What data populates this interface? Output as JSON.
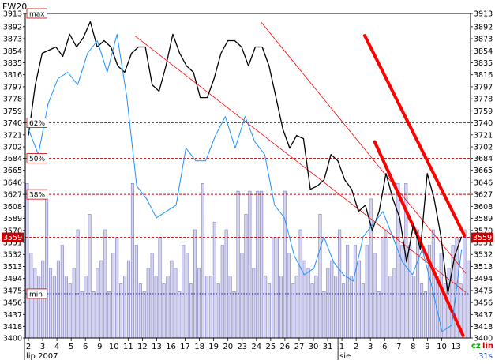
{
  "instrument": "FW20",
  "colors": {
    "price": "#000000",
    "compare_line": "#1e90ff",
    "volume_fill": "#d4d4ee",
    "volume_stroke": "#8080c0",
    "channel": "#ff0000",
    "level_line": "#cc0000",
    "max_min_line": "#0000cc",
    "current_marker": "#cc0000",
    "toggle_green": "#00aa00",
    "toggle_red": "#cc0000",
    "interval_blue": "#0044cc"
  },
  "controls": {
    "toggle_cz": "cz",
    "toggle_lin": "lin",
    "interval": "31s"
  },
  "chart_data": {
    "type": "line",
    "title": "FW20",
    "y_ticks": [
      3913,
      3892,
      3873,
      3854,
      3835,
      3816,
      3797,
      3778,
      3759,
      3740,
      3721,
      3702,
      3684,
      3665,
      3646,
      3627,
      3608,
      3589,
      3570,
      3551,
      3532,
      3513,
      3494,
      3475,
      3456,
      3437,
      3418,
      3400
    ],
    "ylim": [
      3400,
      3913
    ],
    "x_ticks": [
      "2",
      "3",
      "4",
      "5",
      "6",
      "9",
      "10",
      "11",
      "12",
      "13",
      "16",
      "17",
      "18",
      "19",
      "20",
      "23",
      "24",
      "25",
      "26",
      "27",
      "30",
      "31",
      "1",
      "2",
      "3",
      "6",
      "7",
      "8",
      "9",
      "10",
      "13"
    ],
    "month_labels": [
      {
        "label": "lip 2007",
        "index": 0
      },
      {
        "label": "sie",
        "index": 22
      }
    ],
    "reference_levels": [
      {
        "label": "max",
        "value": 3913,
        "style": "dotted-blue"
      },
      {
        "label": "62%",
        "value": 3740,
        "style": "dashed-red"
      },
      {
        "label": "50%",
        "value": 3684,
        "style": "dashed-red"
      },
      {
        "label": "38%",
        "value": 3627,
        "style": "dashed-red"
      },
      {
        "label": "min",
        "value": 3470,
        "style": "dotted-blue"
      }
    ],
    "current": {
      "label": "3559",
      "value": 3559
    },
    "series": [
      {
        "values": [
          3720,
          3800,
          3850,
          3855,
          3860,
          3845,
          3880,
          3860,
          3875,
          3900,
          3860,
          3870,
          3860,
          3830,
          3820,
          3850,
          3860,
          3860,
          3800,
          3790,
          3830,
          3880,
          3850,
          3830,
          3820,
          3780,
          3780,
          3810,
          3850,
          3870,
          3870,
          3860,
          3830,
          3860,
          3860,
          3830,
          3780,
          3730,
          3700,
          3720,
          3715,
          3635,
          3640,
          3650,
          3690,
          3680,
          3650,
          3635,
          3600,
          3610,
          3570,
          3600,
          3660,
          3620,
          3590,
          3520,
          3580,
          3540,
          3660,
          3620,
          3560,
          3470,
          3530,
          3560
        ]
      },
      {
        "values": [
          3730,
          3690,
          3770,
          3810,
          3820,
          3800,
          3850,
          3870,
          3820,
          3880,
          3780,
          3640,
          3620,
          3590,
          3600,
          3610,
          3700,
          3680,
          3680,
          3720,
          3750,
          3700,
          3750,
          3710,
          3690,
          3610,
          3590,
          3530,
          3500,
          3510,
          3560,
          3520,
          3500,
          3490,
          3560,
          3580,
          3600,
          3560,
          3520,
          3500,
          3540,
          3480,
          3410,
          3420,
          3540
        ]
      }
    ],
    "volume": [
      100,
      55,
      45,
      40,
      50,
      90,
      45,
      40,
      50,
      60,
      40,
      35,
      45,
      70,
      30,
      40,
      80,
      30,
      45,
      50,
      70,
      30,
      55,
      65,
      35,
      40,
      50,
      100,
      60,
      35,
      30,
      45,
      55,
      40,
      65,
      35,
      40,
      50,
      45,
      30,
      60,
      55,
      35,
      70,
      45,
      100,
      40,
      40,
      75,
      35,
      60,
      70,
      40,
      30,
      95,
      55,
      80,
      95,
      45,
      95,
      95,
      40,
      35,
      65,
      65,
      40,
      95,
      55,
      35,
      40,
      70,
      50,
      45,
      35,
      40,
      80,
      30,
      45,
      50,
      40,
      70,
      35,
      60,
      40,
      60,
      50,
      35,
      60,
      90,
      55,
      30,
      65,
      70,
      40,
      45,
      100,
      60,
      100,
      60,
      40,
      70,
      35,
      30,
      60,
      70,
      40,
      55,
      35,
      45,
      60,
      65,
      35,
      70,
      50
    ],
    "volume_max": 210,
    "trend_channel": {
      "upper": [
        {
          "x": 23.6,
          "y": 3878
        },
        {
          "x": 30.6,
          "y": 3562
        }
      ],
      "lower": [
        {
          "x": 24.3,
          "y": 3710
        },
        {
          "x": 30.5,
          "y": 3404
        }
      ],
      "mid": [
        {
          "from": {
            "x": 7.5,
            "y": 3877
          },
          "to": {
            "x": 30.7,
            "y": 3472
          }
        },
        {
          "from": {
            "x": 16.3,
            "y": 3900
          },
          "to": {
            "x": 30.7,
            "y": 3502
          }
        }
      ]
    }
  }
}
